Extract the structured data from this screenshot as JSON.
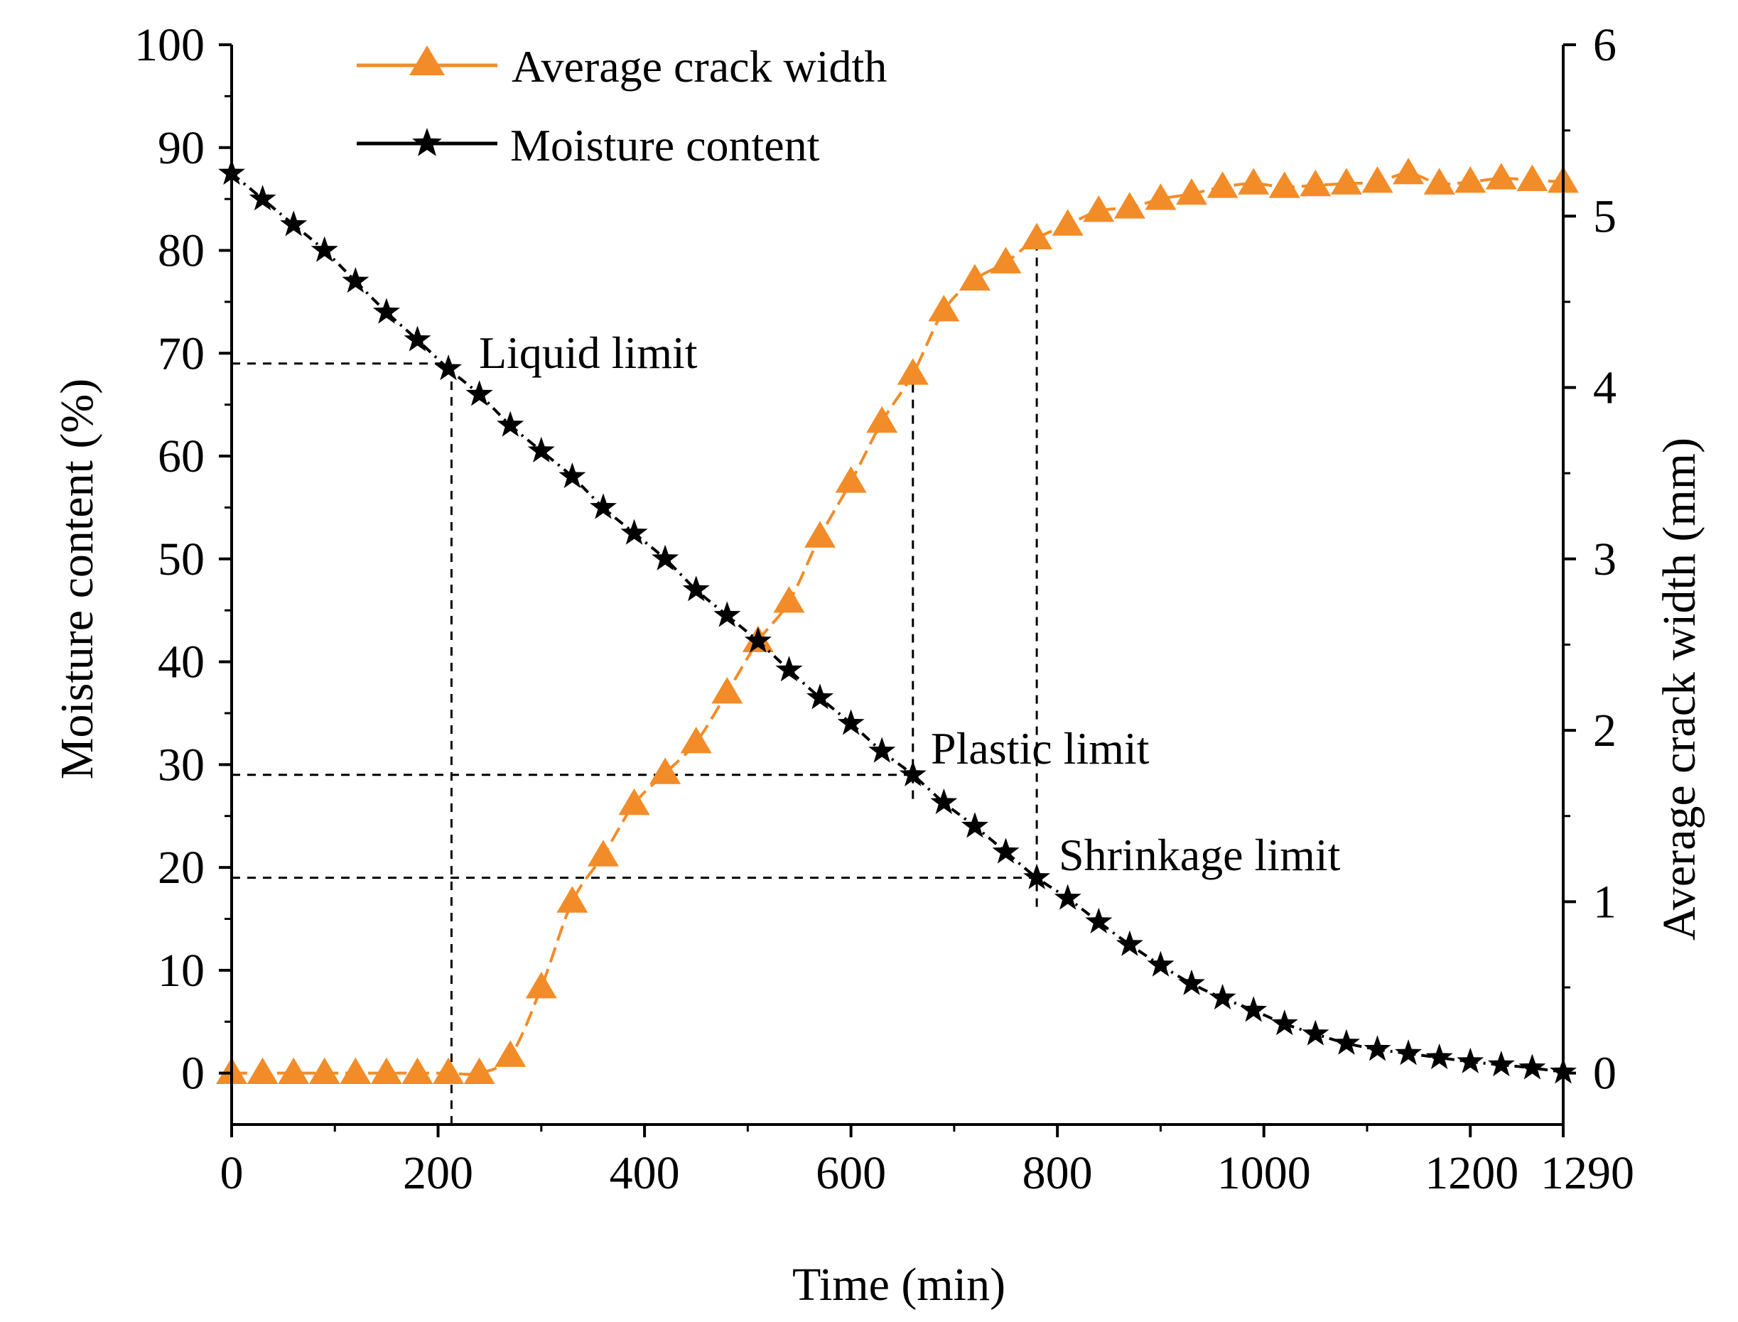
{
  "chart_data": {
    "type": "line",
    "title": "",
    "xlabel": "Time (min)",
    "ylabel_left": "Moisture content (%)",
    "ylabel_right": "Average crack width (mm)",
    "xlim": [
      0,
      1290
    ],
    "ylim_left": [
      -5,
      100
    ],
    "ylim_right": [
      -0.3,
      6
    ],
    "x_ticks": [
      "0",
      "200",
      "400",
      "600",
      "800",
      "1000",
      "1200",
      "1290"
    ],
    "y_left_ticks": [
      "0",
      "10",
      "20",
      "30",
      "40",
      "50",
      "60",
      "70",
      "80",
      "90",
      "100"
    ],
    "y_right_ticks": [
      "0",
      "1",
      "2",
      "3",
      "4",
      "5",
      "6"
    ],
    "grid": false,
    "legend_position": "top-center",
    "series": [
      {
        "name": "Average crack width",
        "axis": "right",
        "color": "#f28c28",
        "marker": "triangle",
        "x": [
          0,
          30,
          60,
          90,
          120,
          150,
          180,
          210,
          240,
          270,
          300,
          330,
          360,
          390,
          420,
          450,
          480,
          510,
          540,
          570,
          600,
          630,
          660,
          690,
          720,
          750,
          780,
          810,
          840,
          870,
          900,
          930,
          960,
          990,
          1020,
          1050,
          1080,
          1110,
          1140,
          1170,
          1200,
          1230,
          1260,
          1290
        ],
        "values": [
          0,
          0,
          0,
          0,
          0,
          0,
          0,
          0,
          0,
          0.1,
          0.5,
          1.0,
          1.27,
          1.57,
          1.75,
          1.93,
          2.22,
          2.52,
          2.75,
          3.13,
          3.45,
          3.8,
          4.08,
          4.45,
          4.63,
          4.73,
          4.87,
          4.95,
          5.03,
          5.05,
          5.1,
          5.13,
          5.17,
          5.19,
          5.17,
          5.18,
          5.19,
          5.2,
          5.25,
          5.19,
          5.2,
          5.22,
          5.21,
          5.2
        ]
      },
      {
        "name": "Moisture content",
        "axis": "left",
        "color": "#000000",
        "marker": "star",
        "x": [
          0,
          30,
          60,
          90,
          120,
          150,
          180,
          210,
          240,
          270,
          300,
          330,
          360,
          390,
          420,
          450,
          480,
          510,
          540,
          570,
          600,
          630,
          660,
          690,
          720,
          750,
          780,
          810,
          840,
          870,
          900,
          930,
          960,
          990,
          1020,
          1050,
          1080,
          1110,
          1140,
          1170,
          1200,
          1230,
          1260,
          1290
        ],
        "values": [
          87.5,
          85,
          82.5,
          80,
          77,
          74,
          71.3,
          68.5,
          66,
          63,
          60.5,
          58,
          55,
          52.5,
          50,
          47,
          44.5,
          42,
          39.2,
          36.5,
          34,
          31.3,
          29,
          26.3,
          24,
          21.5,
          19,
          17,
          14.7,
          12.5,
          10.5,
          8.7,
          7.3,
          6.1,
          4.8,
          3.8,
          2.9,
          2.3,
          1.9,
          1.5,
          1.1,
          0.8,
          0.5,
          0.1
        ]
      }
    ],
    "reference_lines": {
      "horizontal": [
        {
          "y": 69,
          "x_to": 213
        },
        {
          "y": 29,
          "x_to": 660
        },
        {
          "y": 19,
          "x_to": 780
        }
      ],
      "vertical": [
        {
          "x": 213,
          "y_from_right": -0.3,
          "y_to_right": 4.05
        },
        {
          "x": 660,
          "y_from_right": 1.6,
          "y_to_right": 4.08
        },
        {
          "x": 780,
          "y_from_right": 0.97,
          "y_to_right": 4.87
        }
      ]
    },
    "annotations": [
      {
        "text": "Liquid limit",
        "x": 240,
        "y": 70
      },
      {
        "text": "Plastic limit",
        "x": 680,
        "y": 30
      },
      {
        "text": "Shrinkage limit",
        "x": 800,
        "y": 20
      }
    ]
  }
}
